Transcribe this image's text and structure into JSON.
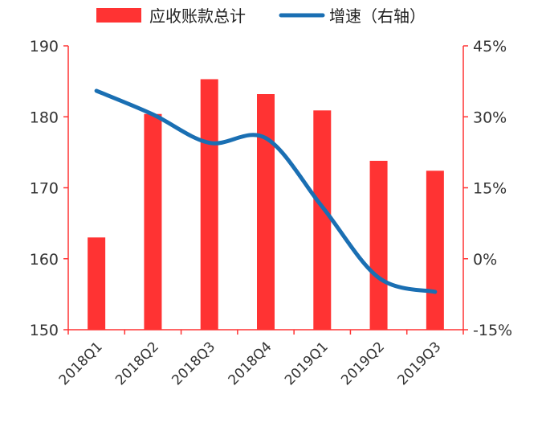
{
  "chart_data": {
    "type": "bar",
    "categories": [
      "2018Q1",
      "2018Q2",
      "2018Q3",
      "2018Q4",
      "2019Q1",
      "2019Q2",
      "2019Q3"
    ],
    "series": [
      {
        "name": "应收账款总计",
        "type": "bar",
        "axis": "left",
        "color": "#ff3333",
        "values": [
          163.0,
          180.4,
          185.3,
          183.2,
          180.9,
          173.8,
          172.4
        ]
      },
      {
        "name": "增速（右轴）",
        "type": "line",
        "axis": "right",
        "color": "#1a6fb3",
        "smooth": true,
        "values": [
          35.5,
          30.5,
          24.5,
          25.5,
          11.0,
          -4.0,
          -7.0
        ]
      }
    ],
    "y_left": {
      "ylim": [
        150,
        190
      ],
      "ticks": [
        150,
        160,
        170,
        180,
        190
      ],
      "tick_labels": [
        "150",
        "160",
        "170",
        "180",
        "190"
      ]
    },
    "y_right": {
      "ylim": [
        -15,
        45
      ],
      "ticks": [
        -15,
        0,
        15,
        30,
        45
      ],
      "tick_labels": [
        "-15%",
        "0%",
        "15%",
        "30%",
        "45%"
      ]
    },
    "axis_color": "#ff3333",
    "grid": false,
    "legend_position": "top"
  }
}
